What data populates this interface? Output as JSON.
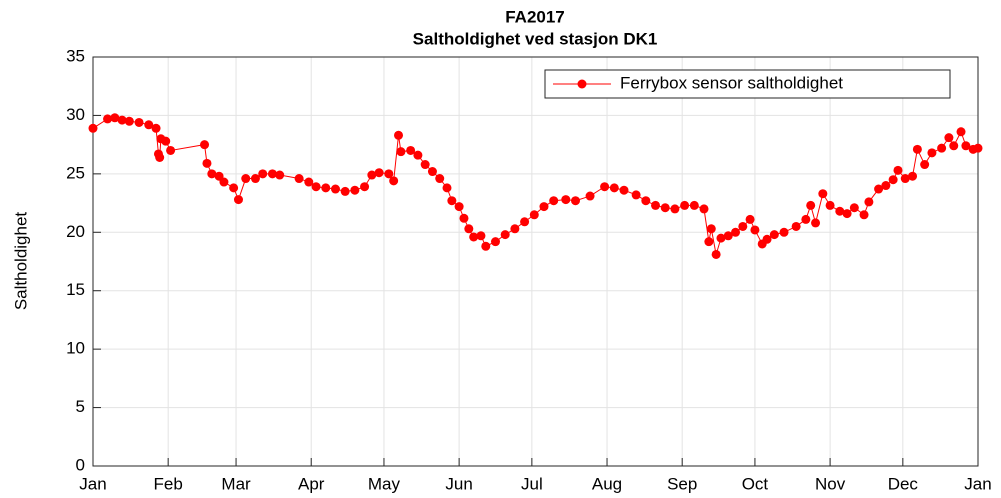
{
  "chart_data": {
    "type": "line",
    "title": "FA2017",
    "subtitle": "Saltholdighet ved stasjon DK1",
    "y_label": "Saltholdighet",
    "xlim": [
      0,
      365
    ],
    "xticks": [
      {
        "value": 0,
        "label": "Jan"
      },
      {
        "value": 31,
        "label": "Feb"
      },
      {
        "value": 59,
        "label": "Mar"
      },
      {
        "value": 90,
        "label": "Apr"
      },
      {
        "value": 120,
        "label": "May"
      },
      {
        "value": 151,
        "label": "Jun"
      },
      {
        "value": 181,
        "label": "Jul"
      },
      {
        "value": 212,
        "label": "Aug"
      },
      {
        "value": 243,
        "label": "Sep"
      },
      {
        "value": 273,
        "label": "Oct"
      },
      {
        "value": 304,
        "label": "Nov"
      },
      {
        "value": 334,
        "label": "Dec"
      },
      {
        "value": 365,
        "label": "Jan"
      }
    ],
    "ylim": [
      0,
      35
    ],
    "yticks": [
      0,
      5,
      10,
      15,
      20,
      25,
      30,
      35
    ],
    "grid": true,
    "legend": "northeast",
    "x": [
      0,
      6,
      9,
      12,
      15,
      19,
      23,
      26,
      27,
      27.5,
      28,
      30,
      32,
      46,
      47,
      49,
      52,
      54,
      58,
      60,
      63,
      67,
      70,
      74,
      77,
      85,
      89,
      92,
      96,
      100,
      104,
      108,
      112,
      115,
      118,
      122,
      124,
      126,
      127,
      131,
      134,
      137,
      140,
      143,
      146,
      148,
      151,
      153,
      155,
      157,
      160,
      162,
      166,
      170,
      174,
      178,
      182,
      186,
      190,
      195,
      199,
      205,
      211,
      215,
      219,
      224,
      228,
      232,
      236,
      240,
      244,
      248,
      252,
      254,
      255,
      257,
      259,
      262,
      265,
      268,
      271,
      273,
      276,
      278,
      281,
      285,
      290,
      294,
      296,
      298,
      301,
      304,
      308,
      311,
      314,
      318,
      320,
      324,
      327,
      330,
      332,
      335,
      338,
      340,
      343,
      346,
      350,
      353,
      355,
      358,
      360,
      363,
      365
    ],
    "series": [
      {
        "name": "Ferrybox sensor saltholdighet",
        "color": "#ff0000",
        "values": [
          28.9,
          29.7,
          29.8,
          29.6,
          29.5,
          29.4,
          29.2,
          28.9,
          26.7,
          26.4,
          28,
          27.8,
          27,
          27.5,
          25.9,
          25,
          24.8,
          24.3,
          23.8,
          22.8,
          24.6,
          24.6,
          25,
          25,
          24.9,
          24.6,
          24.3,
          23.9,
          23.8,
          23.7,
          23.5,
          23.6,
          23.9,
          24.9,
          25.1,
          25,
          24.4,
          28.3,
          26.9,
          27,
          26.6,
          25.8,
          25.2,
          24.6,
          23.8,
          22.7,
          22.2,
          21.2,
          20.3,
          19.6,
          19.7,
          18.8,
          19.2,
          19.8,
          20.3,
          20.9,
          21.5,
          22.2,
          22.7,
          22.8,
          22.7,
          23.1,
          23.9,
          23.8,
          23.6,
          23.2,
          22.7,
          22.3,
          22.1,
          22,
          22.3,
          22.3,
          22,
          19.2,
          20.3,
          18.1,
          19.5,
          19.7,
          20,
          20.5,
          21.1,
          20.2,
          19,
          19.4,
          19.8,
          20,
          20.5,
          21.1,
          22.3,
          20.8,
          23.3,
          22.3,
          21.8,
          21.6,
          22.1,
          21.5,
          22.6,
          23.7,
          24,
          24.5,
          25.3,
          24.6,
          24.8,
          27.1,
          25.8,
          26.8,
          27.2,
          28.1,
          27.4,
          28.6,
          27.4,
          27.1,
          27.2
        ]
      }
    ]
  }
}
